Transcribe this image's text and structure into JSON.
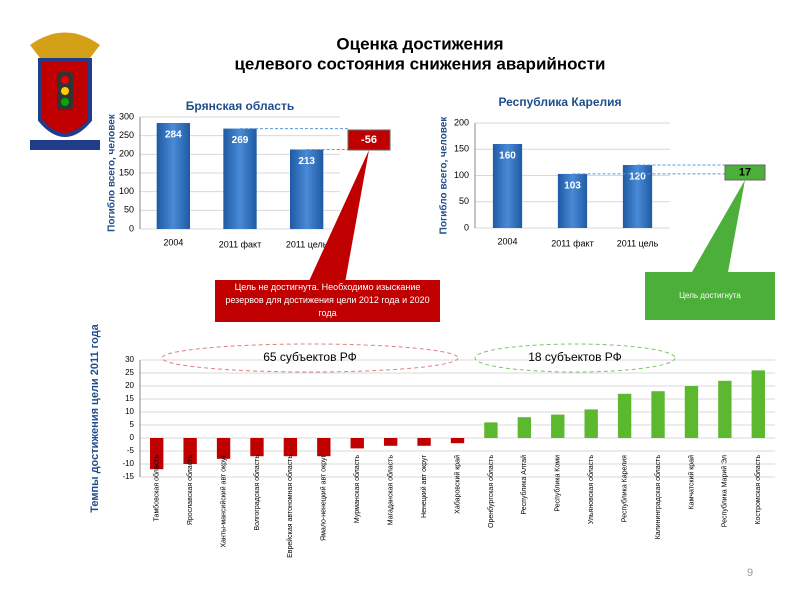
{
  "title": [
    "Оценка достижения",
    "целевого состояния снижения аварийности"
  ],
  "page_number": "9",
  "chart_data": [
    {
      "type": "bar",
      "title": "Брянская область",
      "y_label": "Погибло всего, человек",
      "categories": [
        "2004",
        "2011 факт",
        "2011 цель"
      ],
      "values": [
        284,
        269,
        213
      ],
      "color": "#2f6fba",
      "ylim": [
        0,
        300
      ],
      "yticks": [
        0,
        50,
        100,
        150,
        200,
        250,
        300
      ],
      "grid": true,
      "difference": -56,
      "note": "Цель не достигнута. Необходимо изыскание резервов для достижения цели 2012 года и 2020 года",
      "note_color": "#c00000"
    },
    {
      "type": "bar",
      "title": "Республика Карелия",
      "y_label": "Погибло всего, человек",
      "categories": [
        "2004",
        "2011 факт",
        "2011 цель"
      ],
      "values": [
        160,
        103,
        120
      ],
      "color": "#2f6fba",
      "ylim": [
        0,
        200
      ],
      "yticks": [
        0,
        50,
        100,
        150,
        200
      ],
      "grid": true,
      "difference": 17,
      "note": "Цель достигнута",
      "note_color": "#4caf3a"
    },
    {
      "type": "bar",
      "y_label": "Темпы достижения цели 2011 года",
      "categories": [
        "Тамбовская область",
        "Ярославская область",
        "Ханты-мансийский авт округ",
        "Волгоградская область",
        "Еврейская автономная область",
        "Ямало-ненецкий авт округ",
        "Мурманская область",
        "Магаданская область",
        "Ненецкий авт округ",
        "Хабаровский край",
        "Оренбургская область",
        "Республика Алтай",
        "Республика Коми",
        "Ульяновская область",
        "Республика Карелия",
        "Калининградская область",
        "Камчатский край",
        "Республика Марий Эл",
        "Костромская область"
      ],
      "values": [
        -12,
        -10,
        -8,
        -7,
        -7,
        -7,
        -4,
        -3,
        -3,
        -2,
        6,
        8,
        9,
        11,
        17,
        18,
        20,
        22,
        26
      ],
      "negative_color": "#c00000",
      "positive_color": "#5cb82e",
      "ylim": [
        -15,
        30
      ],
      "yticks": [
        -15,
        -10,
        -5,
        0,
        5,
        10,
        15,
        20,
        25,
        30
      ],
      "grid": true,
      "group_labels": [
        "65 субъектов РФ",
        "18 субъектов РФ"
      ]
    }
  ]
}
